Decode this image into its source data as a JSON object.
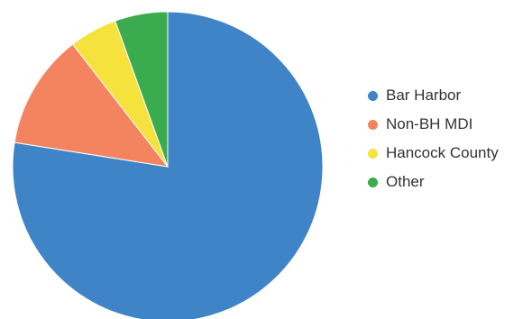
{
  "chart_data": {
    "type": "pie",
    "title": "",
    "categories": [
      "Bar Harbor",
      "Non-BH MDI",
      "Hancock County",
      "Other"
    ],
    "values": [
      77.5,
      12.0,
      5.0,
      5.5
    ],
    "colors": [
      "#3f84c7",
      "#f4845f",
      "#f5e23d",
      "#3aab4f"
    ],
    "start": "top",
    "direction": "clockwise",
    "legend": {
      "position": "right",
      "marker": "circle"
    }
  }
}
